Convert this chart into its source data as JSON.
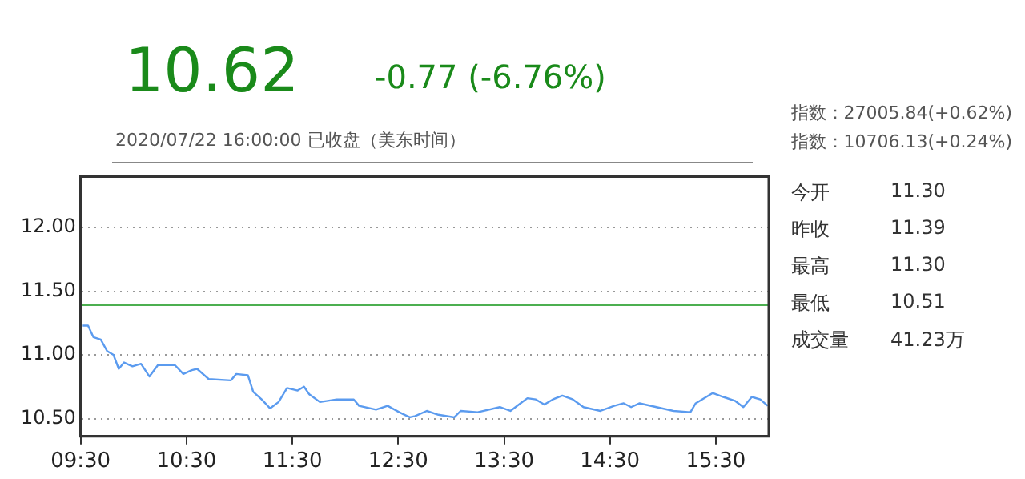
{
  "chart_data": {
    "type": "line",
    "title": "10.62",
    "subtitle": "-0.77 (-6.76%)",
    "annotations": [
      "2020/07/22 16:00:00 已收盘（美东时间）",
      "指数：27005.84(+0.62%)",
      "指数：10706.13(+0.24%)",
      "今开",
      "11.30",
      "昨收",
      "11.39",
      "最高",
      "11.30",
      "最低",
      "10.51",
      "成交量",
      "41.23万"
    ],
    "x": [
      9.52,
      9.57,
      9.62,
      9.69,
      9.75,
      9.81,
      9.86,
      9.91,
      9.99,
      10.07,
      10.15,
      10.23,
      10.39,
      10.47,
      10.55,
      10.6,
      10.71,
      10.92,
      10.97,
      11.08,
      11.13,
      11.21,
      11.29,
      11.37,
      11.45,
      11.55,
      11.61,
      11.66,
      11.76,
      11.92,
      12.08,
      12.13,
      12.29,
      12.4,
      12.51,
      12.61,
      12.66,
      12.77,
      12.88,
      13.03,
      13.09,
      13.25,
      13.46,
      13.56,
      13.64,
      13.72,
      13.8,
      13.88,
      13.96,
      14.05,
      14.15,
      14.25,
      14.41,
      14.54,
      14.63,
      14.7,
      14.78,
      14.94,
      15.1,
      15.26,
      15.31,
      15.47,
      15.57,
      15.68,
      15.76,
      15.84,
      15.92,
      15.99
    ],
    "series": [
      {
        "color": "#5b9bef",
        "values": [
          11.23,
          11.23,
          11.14,
          11.12,
          11.03,
          11.0,
          10.89,
          10.94,
          10.91,
          10.93,
          10.83,
          10.92,
          10.92,
          10.85,
          10.88,
          10.89,
          10.81,
          10.8,
          10.85,
          10.84,
          10.71,
          10.65,
          10.58,
          10.63,
          10.74,
          10.72,
          10.75,
          10.69,
          10.63,
          10.65,
          10.65,
          10.6,
          10.57,
          10.6,
          10.55,
          10.51,
          10.52,
          10.56,
          10.53,
          10.51,
          10.56,
          10.55,
          10.59,
          10.56,
          10.61,
          10.66,
          10.65,
          10.61,
          10.65,
          10.68,
          10.65,
          10.59,
          10.56,
          10.6,
          10.62,
          10.59,
          10.62,
          10.59,
          10.56,
          10.55,
          10.62,
          10.7,
          10.67,
          10.64,
          10.59,
          10.67,
          10.65,
          10.6
        ]
      }
    ],
    "xlim": [
      9.5,
      16
    ],
    "xticks": [
      {
        "value": 9.5,
        "label": "09:30"
      },
      {
        "value": 10.5,
        "label": "10:30"
      },
      {
        "value": 11.5,
        "label": "11:30"
      },
      {
        "value": 12.5,
        "label": "12:30"
      },
      {
        "value": 13.5,
        "label": "13:30"
      },
      {
        "value": 14.5,
        "label": "14:30"
      },
      {
        "value": 15.5,
        "label": "15:30"
      }
    ],
    "ylim": [
      10.36,
      12.4
    ],
    "yticks": [
      {
        "value": 10.5,
        "label": "10.50"
      },
      {
        "value": 11,
        "label": "11.00"
      },
      {
        "value": 11.5,
        "label": "11.50"
      },
      {
        "value": 12,
        "label": "12.00"
      }
    ],
    "ref_lines": [
      {
        "axis": "y",
        "value": 11.39,
        "color": "#4caf50"
      }
    ],
    "grid": "y",
    "legend": false,
    "marker": "none",
    "line_style": "solid"
  }
}
